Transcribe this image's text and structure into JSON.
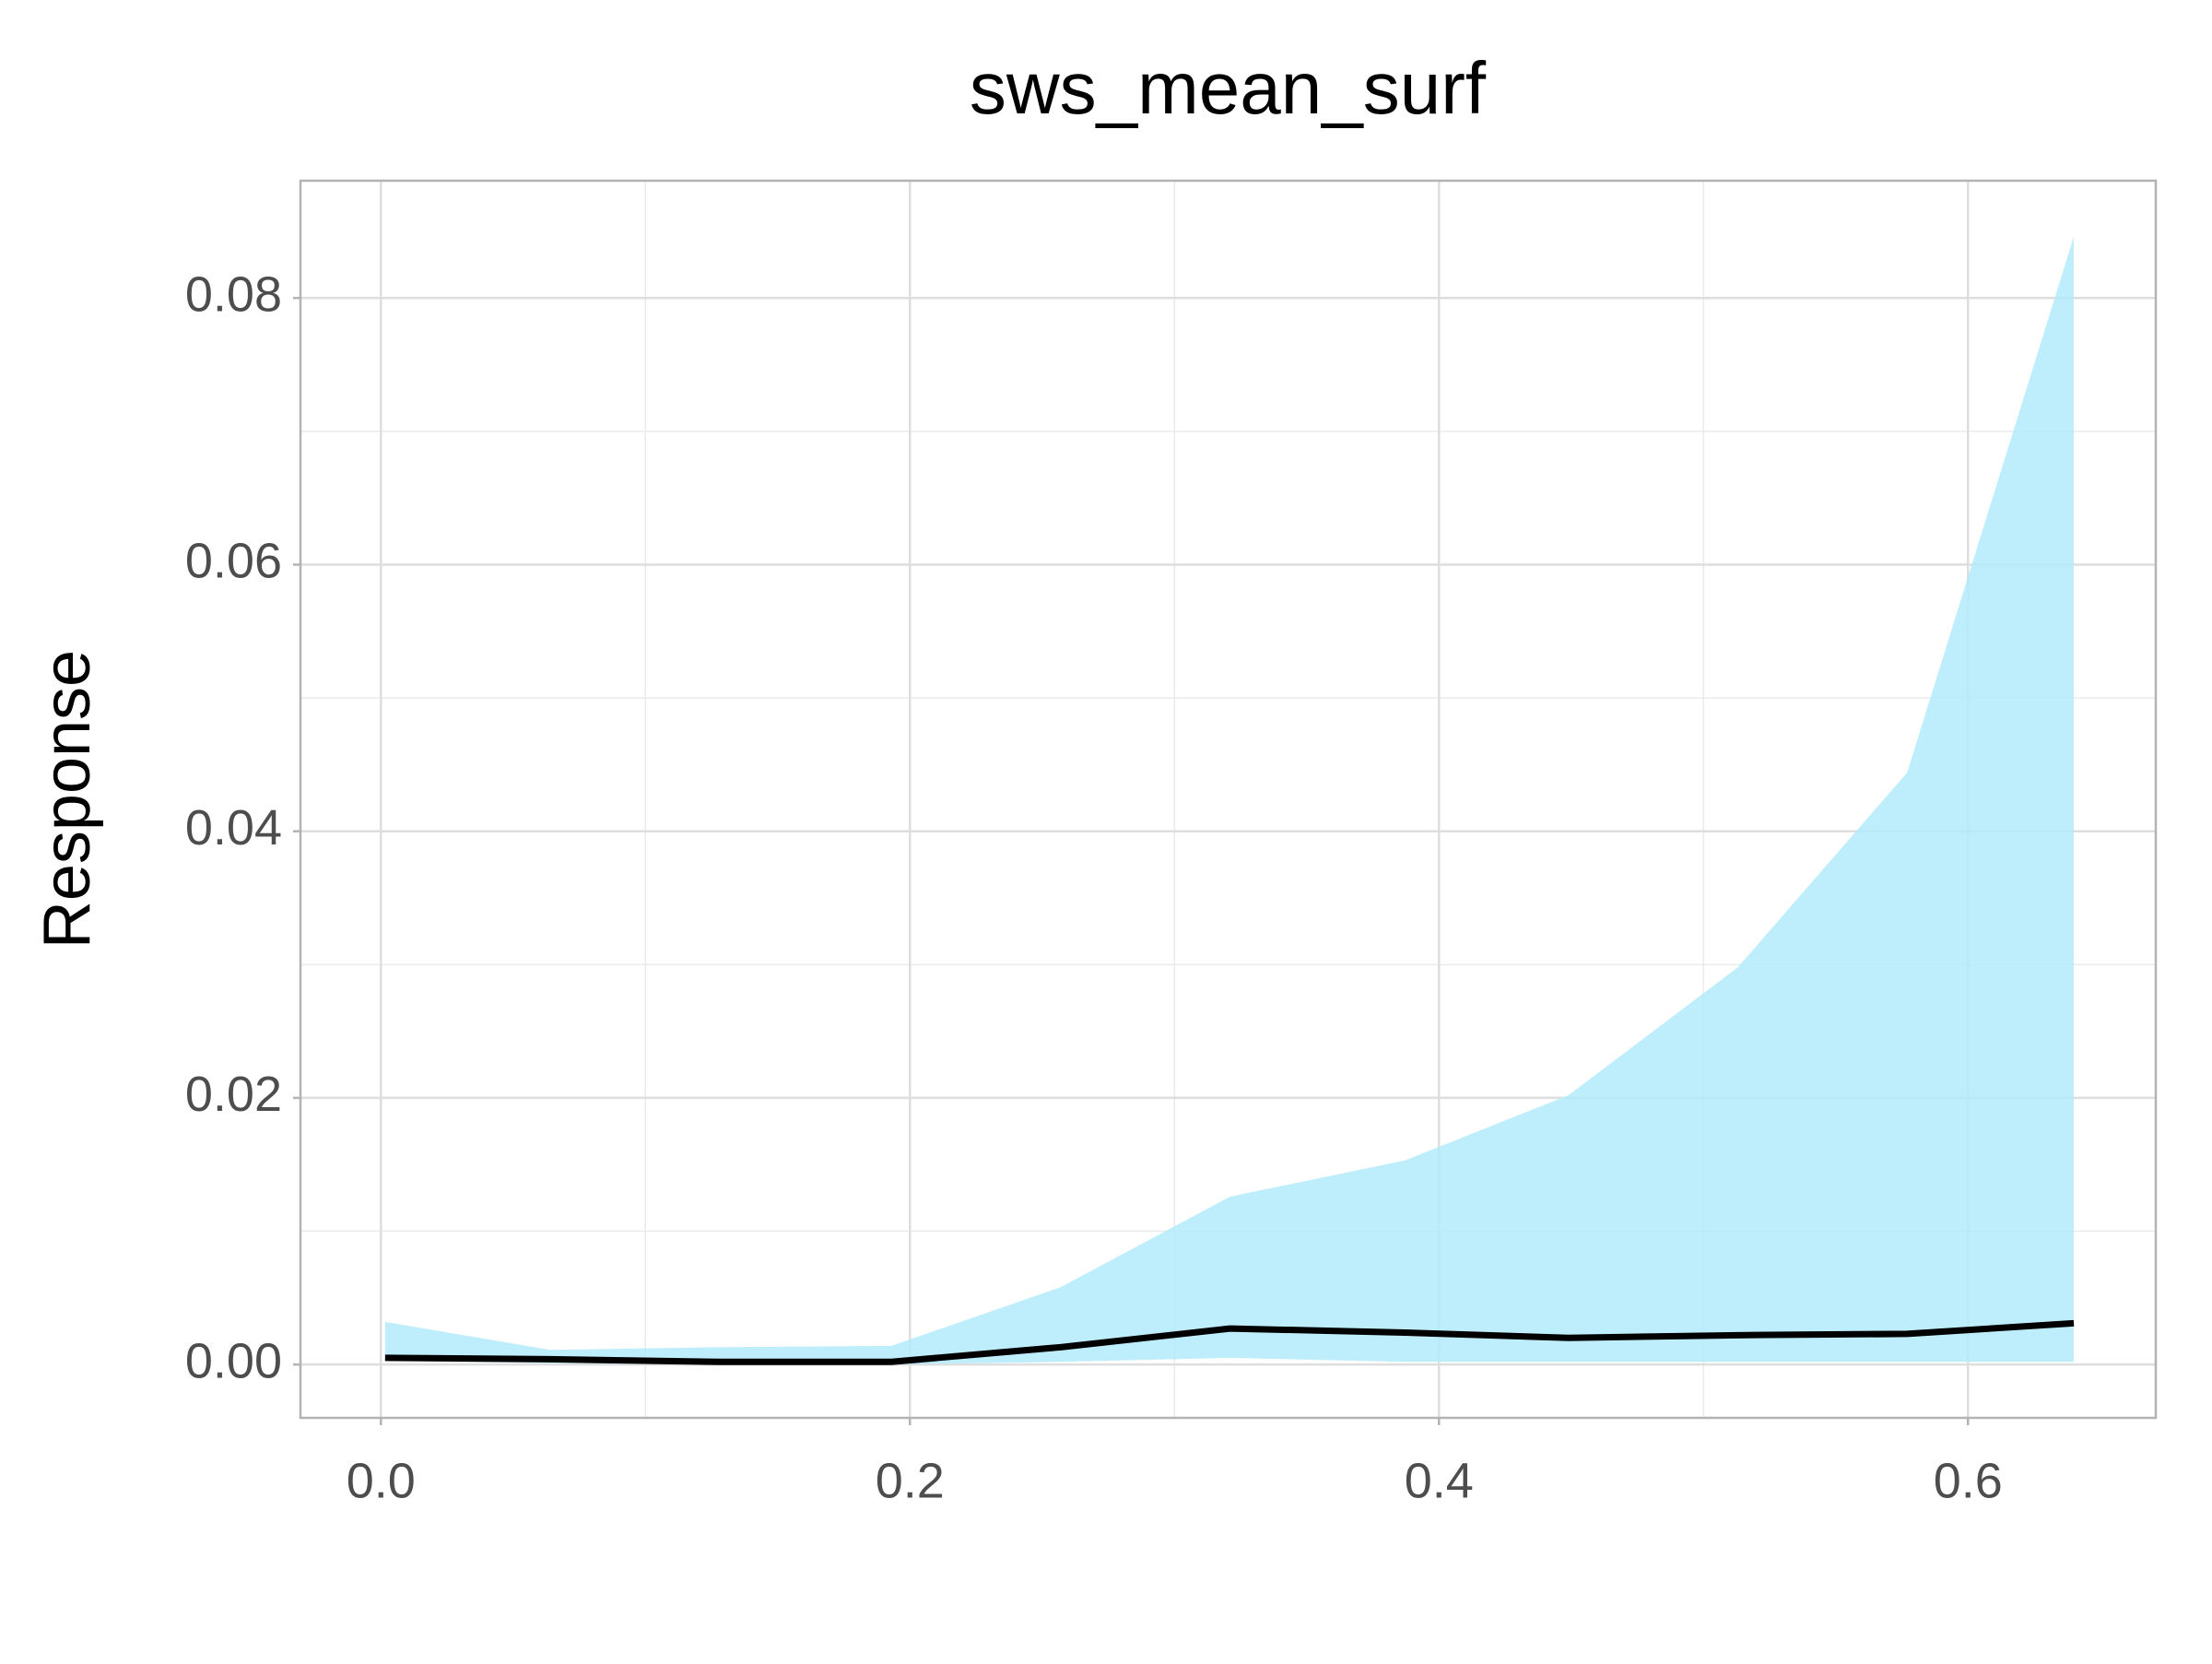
{
  "chart_data": {
    "type": "line",
    "title": "sws_mean_surf",
    "y_label": "Response",
    "x": [
      0.0016,
      0.064,
      0.128,
      0.193,
      0.257,
      0.321,
      0.387,
      0.449,
      0.513,
      0.577,
      0.64
    ],
    "series": [
      {
        "color": "#000000",
        "values": [
          0.0005,
          0.0004,
          0.0002,
          0.0002,
          0.0013,
          0.0027,
          0.0024,
          0.002,
          0.0022,
          0.0023,
          0.0031
        ]
      }
    ],
    "band": {
      "color": "#b3ebfc",
      "upper": [
        0.0032,
        0.0011,
        0.0013,
        0.0014,
        0.0058,
        0.0126,
        0.0153,
        0.0202,
        0.0298,
        0.0444,
        0.0846
      ],
      "lower": [
        0.0003,
        0.0001,
        0,
        0,
        0.0002,
        0.0005,
        0.0002,
        0.0002,
        0.0002,
        0.0002,
        0.0002
      ]
    },
    "xlim": [
      -0.0304,
      0.671
    ],
    "ylim": [
      -0.004,
      0.0888
    ],
    "xticks": [
      {
        "value": 0,
        "label": "0.0"
      },
      0.2,
      0.4,
      0.6
    ],
    "yticks": [
      {
        "value": 0,
        "label": "0.00"
      },
      {
        "value": 0.02,
        "label": "0.02"
      },
      {
        "value": 0.04,
        "label": "0.04"
      },
      {
        "value": 0.06,
        "label": "0.06"
      },
      {
        "value": 0.08,
        "label": "0.08"
      }
    ],
    "grid": true
  }
}
